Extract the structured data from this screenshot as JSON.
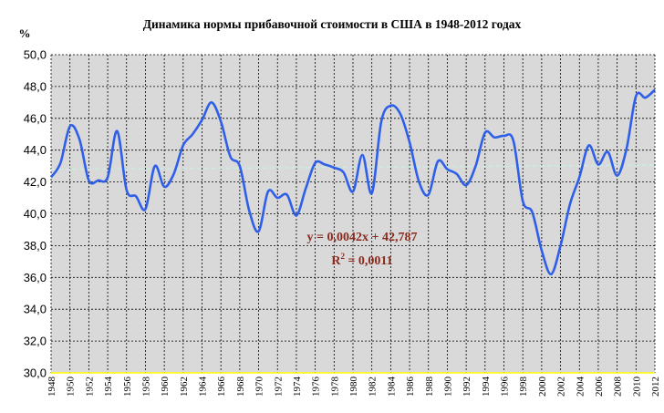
{
  "chart_data": {
    "type": "line",
    "title": "Динамика нормы прибавочной стоимости в США в 1948-2012 годах",
    "ylabel": "%",
    "ylim": [
      30,
      50
    ],
    "yticks": [
      "30,0",
      "32,0",
      "34,0",
      "36,0",
      "38,0",
      "40,0",
      "42,0",
      "44,0",
      "46,0",
      "48,0",
      "50,0"
    ],
    "xlim": [
      1948,
      2012
    ],
    "xticks": [
      "1948",
      "1950",
      "1952",
      "1954",
      "1956",
      "1958",
      "1960",
      "1962",
      "1964",
      "1966",
      "1968",
      "1970",
      "1972",
      "1974",
      "1976",
      "1978",
      "1980",
      "1982",
      "1984",
      "1986",
      "1988",
      "1990",
      "1992",
      "1994",
      "1996",
      "1998",
      "2000",
      "2002",
      "2004",
      "2006",
      "2008",
      "2010",
      "2012"
    ],
    "grid": true,
    "series": [
      {
        "color": "#2F5FE8",
        "x": [
          1948,
          1949,
          1950,
          1951,
          1952,
          1953,
          1954,
          1955,
          1956,
          1957,
          1958,
          1959,
          1960,
          1961,
          1962,
          1963,
          1964,
          1965,
          1966,
          1967,
          1968,
          1969,
          1970,
          1971,
          1972,
          1973,
          1974,
          1975,
          1976,
          1977,
          1978,
          1979,
          1980,
          1981,
          1982,
          1983,
          1984,
          1985,
          1986,
          1987,
          1988,
          1989,
          1990,
          1991,
          1992,
          1993,
          1994,
          1995,
          1996,
          1997,
          1998,
          1999,
          2000,
          2001,
          2002,
          2003,
          2004,
          2005,
          2006,
          2007,
          2008,
          2009,
          2010,
          2011,
          2012
        ],
        "y": [
          42.3,
          43.2,
          45.5,
          44.7,
          42.1,
          42.1,
          42.3,
          45.2,
          41.5,
          41.1,
          40.3,
          43.0,
          41.7,
          42.5,
          44.3,
          45.0,
          45.9,
          47.0,
          45.8,
          43.6,
          43.0,
          40.2,
          38.9,
          41.4,
          41.0,
          41.2,
          39.9,
          41.6,
          43.2,
          43.1,
          42.9,
          42.6,
          41.4,
          43.7,
          41.3,
          45.8,
          46.8,
          46.3,
          44.5,
          42.0,
          41.2,
          43.3,
          42.8,
          42.5,
          41.8,
          43.0,
          45.1,
          44.8,
          44.9,
          44.6,
          40.8,
          40.1,
          37.7,
          36.2,
          38.0,
          40.6,
          42.3,
          44.3,
          43.1,
          43.9,
          42.4,
          44.1,
          47.4,
          47.3,
          47.8
        ]
      }
    ],
    "trendline": {
      "color": "#CFE8E4",
      "equation": "y = 0,0042x + 42,787",
      "r2_label": "R",
      "r2_sup": "2",
      "r2_value": " = 0,0011",
      "slope": 0.0042,
      "intercept": 42.787
    },
    "colors": {
      "plot_background": "#D9D9D9",
      "grid": "#000000",
      "x_axis_line": "#FFFF00",
      "annotation": "#8B2A1C"
    }
  }
}
